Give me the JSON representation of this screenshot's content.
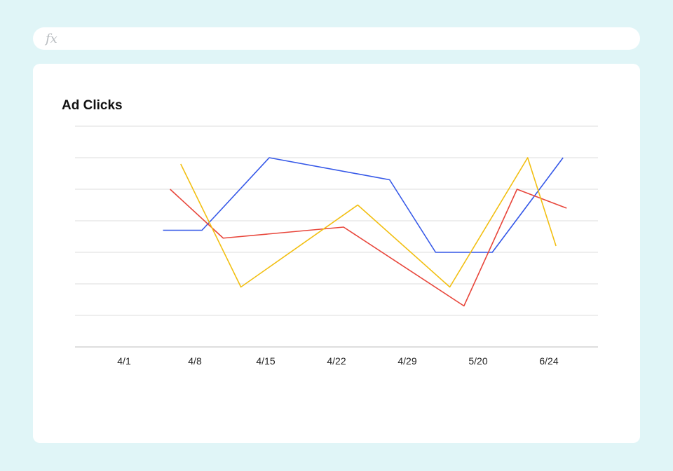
{
  "formula_bar": {
    "icon": "fx-icon",
    "text": "fx"
  },
  "chart_data": {
    "type": "line",
    "title": "Ad Clicks",
    "xlabel": "",
    "ylabel": "",
    "categories": [
      "4/1",
      "4/8",
      "4/15",
      "4/22",
      "4/29",
      "5/20",
      "6/24"
    ],
    "ylim": [
      0,
      7
    ],
    "grid": true,
    "legend": "none",
    "series": [
      {
        "color": "#3558e8",
        "points": [
          [
            0.55,
            3.7
          ],
          [
            1.0,
            3.7
          ],
          [
            1.1,
            3.7
          ],
          [
            2.05,
            6.0
          ],
          [
            3.75,
            5.3
          ],
          [
            4.4,
            3.0
          ],
          [
            4.55,
            3.0
          ],
          [
            5.2,
            3.0
          ],
          [
            6.2,
            6.0
          ]
        ]
      },
      {
        "color": "#e8463b",
        "points": [
          [
            0.65,
            5.0
          ],
          [
            1.4,
            3.45
          ],
          [
            3.1,
            3.8
          ],
          [
            4.8,
            1.3
          ],
          [
            5.55,
            5.0
          ],
          [
            6.25,
            4.4
          ]
        ]
      },
      {
        "color": "#f2bf12",
        "points": [
          [
            0.8,
            5.8
          ],
          [
            1.65,
            1.9
          ],
          [
            3.3,
            4.5
          ],
          [
            4.6,
            1.9
          ],
          [
            5.7,
            6.0
          ],
          [
            6.1,
            3.2
          ]
        ]
      }
    ]
  }
}
